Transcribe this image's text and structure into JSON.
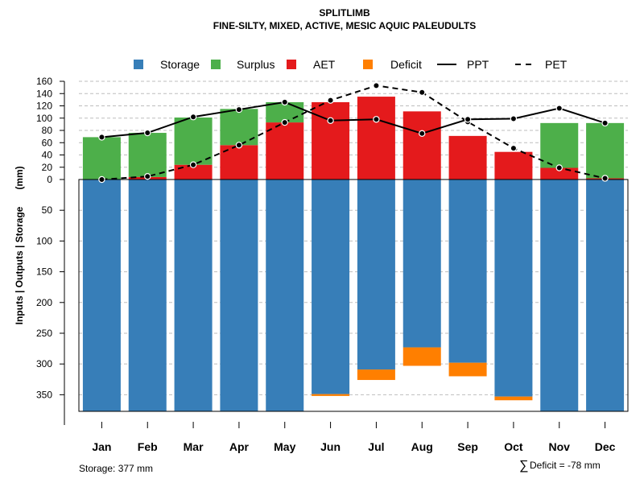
{
  "chart_data": {
    "type": "bar",
    "title": "SPLITLIMB",
    "subtitle": "FINE-SILTY, MIXED, ACTIVE, MESIC AQUIC PALEUDULTS",
    "ylabel": "Inputs | Outputs | Storage",
    "ylabel_units": "(mm)",
    "categories": [
      "Jan",
      "Feb",
      "Mar",
      "Apr",
      "May",
      "Jun",
      "Jul",
      "Aug",
      "Sep",
      "Oct",
      "Nov",
      "Dec"
    ],
    "upper_axis": {
      "ylim": [
        0,
        160
      ],
      "ticks": [
        "0",
        "20",
        "40",
        "60",
        "80",
        "100",
        "120",
        "140",
        "160"
      ],
      "tick_values": [
        0,
        20,
        40,
        60,
        80,
        100,
        120,
        140,
        160
      ]
    },
    "lower_axis": {
      "ylim": [
        0,
        377
      ],
      "ticks": [
        "50",
        "100",
        "150",
        "200",
        "250",
        "300",
        "350"
      ],
      "tick_values": [
        50,
        100,
        150,
        200,
        250,
        300,
        350
      ]
    },
    "series": [
      {
        "name": "Storage",
        "kind": "bar-down",
        "color": "#377EB8",
        "values": [
          377,
          377,
          377,
          377,
          377,
          349,
          309,
          273,
          298,
          353,
          377,
          377
        ]
      },
      {
        "name": "Surplus",
        "kind": "bar-up-stack",
        "color": "#4DAF4A",
        "values": [
          69,
          72,
          77,
          59,
          33,
          0,
          0,
          0,
          0,
          0,
          73,
          90
        ]
      },
      {
        "name": "AET",
        "kind": "bar-up",
        "color": "#E41A1C",
        "values": [
          0,
          4,
          24,
          56,
          93,
          126,
          135,
          111,
          71,
          45,
          19,
          2
        ]
      },
      {
        "name": "Deficit",
        "kind": "bar-down-stack",
        "color": "#FF7F00",
        "values": [
          0,
          0,
          0,
          0,
          0,
          3,
          17,
          30,
          22,
          6,
          0,
          0
        ]
      },
      {
        "name": "PPT",
        "kind": "line-solid",
        "color": "#000000",
        "values": [
          69,
          76,
          102,
          114,
          126,
          96,
          98,
          75,
          98,
          99,
          116,
          92
        ]
      },
      {
        "name": "PET",
        "kind": "line-dashed",
        "color": "#000000",
        "values": [
          0,
          5,
          24,
          56,
          93,
          129,
          153,
          142,
          94,
          51,
          19,
          2
        ]
      }
    ],
    "legend": {
      "placement": "top",
      "items": [
        {
          "label": "Storage",
          "color": "#377EB8",
          "symbol": "square"
        },
        {
          "label": "Surplus",
          "color": "#4DAF4A",
          "symbol": "square"
        },
        {
          "label": "AET",
          "color": "#E41A1C",
          "symbol": "square"
        },
        {
          "label": "Deficit",
          "color": "#FF7F00",
          "symbol": "square"
        },
        {
          "label": "PPT",
          "color": "#000000",
          "symbol": "line"
        },
        {
          "label": "PET",
          "color": "#000000",
          "symbol": "dashed"
        }
      ]
    },
    "grid": true,
    "annotations": {
      "storage": "Storage: 377 mm",
      "deficit_symbol": "∑",
      "deficit": "Deficit = -78 mm"
    }
  }
}
